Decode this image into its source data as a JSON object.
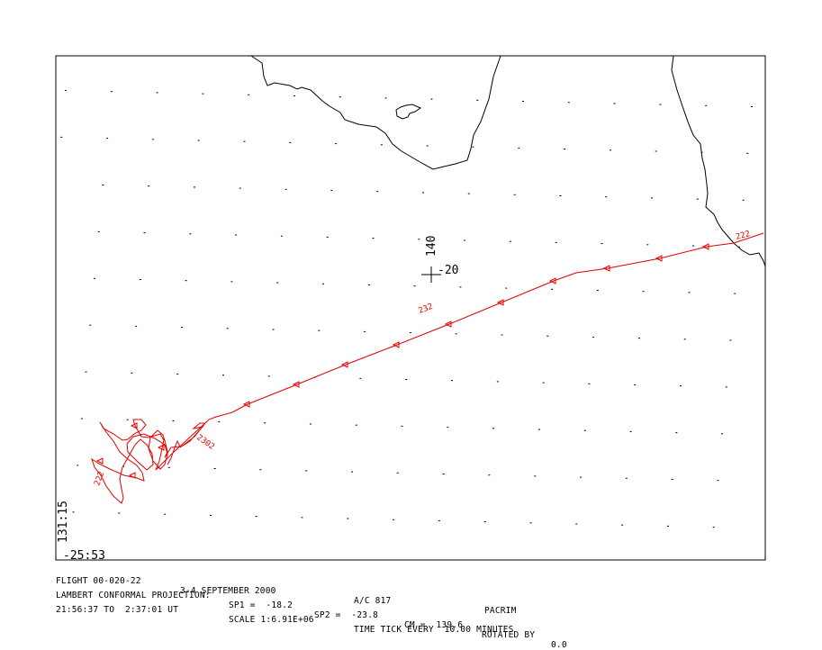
{
  "colors": {
    "track": "#e00000",
    "frame": "#000000",
    "coast": "#000000",
    "grid": "#000000"
  },
  "center_marker": {
    "lon_label": "140",
    "lat_label": "-20"
  },
  "corner_labels": {
    "lon": "131:15",
    "lat": "-25:53"
  },
  "track_labels": [
    "222",
    "232",
    "2302",
    "222"
  ],
  "footer": {
    "line1": {
      "flight": "FLIGHT 00-020-22",
      "dates": "3-4 SEPTEMBER 2000",
      "aircraft": "A/C 817",
      "project": "PACRIM"
    },
    "line2": {
      "projection": "LAMBERT CONFORMAL PROJECTION:",
      "sp1": "SP1 =  -18.2",
      "sp2": "SP2 =  -23.8",
      "cm": "CM =  139.6",
      "rotated": "ROTATED BY",
      "rotation": "0.0"
    },
    "line3": {
      "time_range": "21:56:37 TO  2:37:01 UT",
      "scale": "SCALE 1:6.91E+06",
      "time_tick": "TIME TICK EVERY  10.00 MINUTES"
    }
  }
}
